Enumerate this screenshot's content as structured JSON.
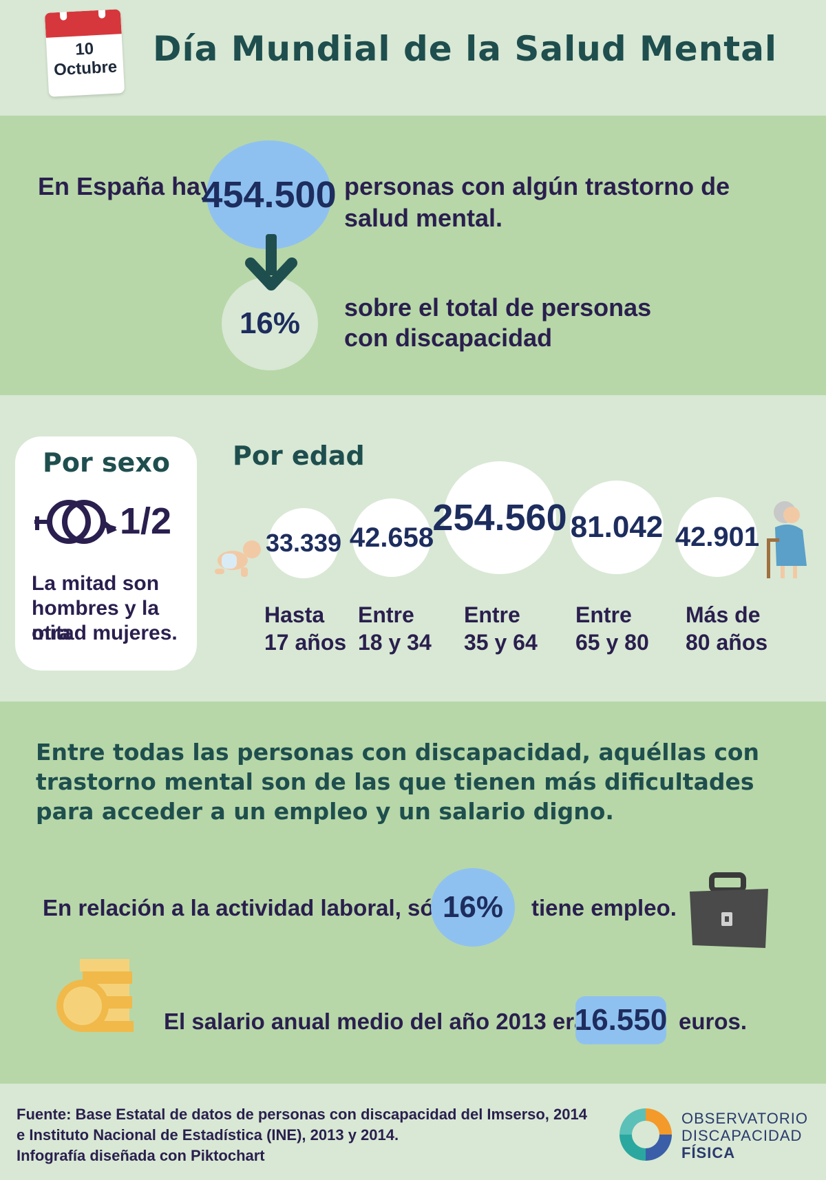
{
  "header": {
    "calendar_day": "10",
    "calendar_month": "Octubre",
    "title": "Día Mundial de la Salud Mental"
  },
  "stats": {
    "intro": "En España hay",
    "total": "454.500",
    "total_desc": "personas con algún trastorno de salud mental.",
    "percent": "16%",
    "percent_desc_line1": "sobre el total de personas",
    "percent_desc_line2": "con discapacidad"
  },
  "sexo": {
    "heading": "Por sexo",
    "ratio": "1/2",
    "desc_line1": "La mitad son",
    "desc_line2": "hombres y la otra",
    "desc_line3": "mitad mujeres."
  },
  "edad": {
    "heading": "Por edad",
    "groups": [
      {
        "value": "33.339",
        "label_line1": "Hasta",
        "label_line2": "17 años"
      },
      {
        "value": "42.658",
        "label_line1": "Entre",
        "label_line2": "18 y 34"
      },
      {
        "value": "254.560",
        "label_line1": "Entre",
        "label_line2": "35 y 64"
      },
      {
        "value": "81.042",
        "label_line1": "Entre",
        "label_line2": "65 y 80"
      },
      {
        "value": "42.901",
        "label_line1": "Más de",
        "label_line2": "80 años"
      }
    ]
  },
  "employment": {
    "statement_line1": "Entre todas las personas con discapacidad, aquéllas con",
    "statement_line2": "trastorno mental son de las que tienen más dificultades",
    "statement_line3": "para acceder a un empleo y un salario digno.",
    "activity_before": "En relación a la actividad laboral, sólo el",
    "activity_percent": "16%",
    "activity_after": "tiene empleo.",
    "salary_before": "El salario anual medio del año 2013 era de",
    "salary_value": "16.550",
    "salary_after": "euros."
  },
  "footer": {
    "source_line1": "Fuente: Base Estatal de datos de personas con discapacidad del Imserso, 2014",
    "source_line2": "e Instituto Nacional de Estadística (INE), 2013 y 2014.",
    "credit": "Infografía diseñada con Piktochart",
    "logo_line1": "OBSERVATORIO",
    "logo_line2": "DISCAPACIDAD",
    "logo_line3": "FÍSICA"
  },
  "colors": {
    "dark_bg": "#b7d7a8",
    "light_bg": "#d8e8d4",
    "accent_blue": "#8fc1f0",
    "title_teal": "#1f4e4e",
    "text_navy": "#2a1f4e"
  },
  "icons": [
    "calendar-icon",
    "arrow-down-icon",
    "gender-icon",
    "baby-icon",
    "elderly-woman-icon",
    "briefcase-icon",
    "coins-icon",
    "observatorio-logo-icon"
  ]
}
